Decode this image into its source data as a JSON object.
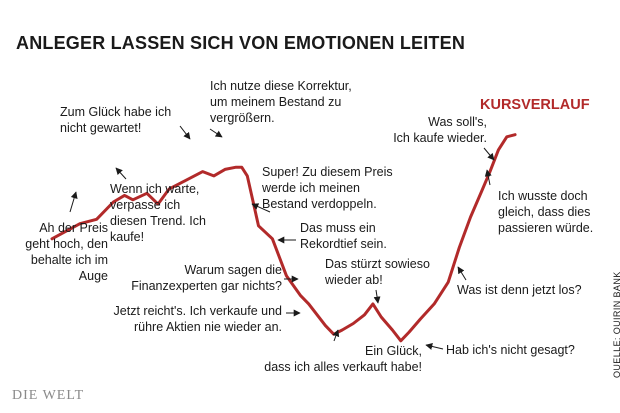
{
  "title": "ANLEGER LASSEN SICH VON EMOTIONEN LEITEN",
  "logo": "DIE WELT",
  "source": "QUELLE: QUIRIN BANK",
  "colors": {
    "line": "#b22a2a",
    "text": "#1a1a1a",
    "logo": "#8a8a8a"
  },
  "chart_data": {
    "type": "line",
    "title": "ANLEGER LASSEN SICH VON EMOTIONEN LEITEN",
    "xlabel": "",
    "ylabel": "",
    "grid": false,
    "legend": "none",
    "series": [
      {
        "name": "KURSVERLAUF",
        "color": "#b22a2a",
        "points": [
          [
            0,
            48
          ],
          [
            5,
            55
          ],
          [
            8,
            57
          ],
          [
            11,
            65
          ],
          [
            13,
            68
          ],
          [
            14.5,
            66
          ],
          [
            17,
            69
          ],
          [
            19,
            64
          ],
          [
            21,
            71
          ],
          [
            24,
            75
          ],
          [
            27,
            79
          ],
          [
            29,
            77
          ],
          [
            31,
            80
          ],
          [
            33,
            81
          ],
          [
            34,
            81
          ],
          [
            35,
            77
          ],
          [
            37,
            54
          ],
          [
            39.5,
            48
          ],
          [
            42,
            31
          ],
          [
            44.5,
            22
          ],
          [
            46,
            18
          ],
          [
            47.5,
            13
          ],
          [
            49,
            8
          ],
          [
            50.5,
            4
          ],
          [
            52,
            6
          ],
          [
            54,
            9
          ],
          [
            56,
            13
          ],
          [
            57.5,
            18
          ],
          [
            59,
            12
          ],
          [
            61,
            6
          ],
          [
            62.5,
            1
          ],
          [
            64,
            5
          ],
          [
            66,
            11
          ],
          [
            68.5,
            18
          ],
          [
            71,
            28
          ],
          [
            73,
            44
          ],
          [
            75,
            58
          ],
          [
            77,
            70
          ],
          [
            78.5,
            79
          ],
          [
            80,
            89
          ],
          [
            81.5,
            95
          ],
          [
            83,
            96
          ]
        ]
      }
    ],
    "annotations": [
      {
        "id": "a1",
        "text": "Ah der Preis\ngeht hoch, den\nbehalte ich im\nAuge"
      },
      {
        "id": "a2",
        "text": "Zum Glück habe ich\nnicht gewartet!"
      },
      {
        "id": "a3",
        "text": "Wenn ich warte,\nverpasse ich\ndiesen Trend. Ich\nkaufe!"
      },
      {
        "id": "a4",
        "text": "Ich nutze diese Korrektur,\num meinem Bestand zu\nvergrößern."
      },
      {
        "id": "a5",
        "text": "Super! Zu diesem Preis\nwerde ich meinen\nBestand verdoppeln."
      },
      {
        "id": "a6",
        "text": "Das muss ein\nRekordtief sein."
      },
      {
        "id": "a7",
        "text": "Warum sagen die\nFinanzexperten gar nichts?"
      },
      {
        "id": "a8",
        "text": "Das stürzt sowieso\nwieder ab!"
      },
      {
        "id": "a9",
        "text": "Jetzt reicht's. Ich verkaufe und\nrühre Aktien nie wieder an."
      },
      {
        "id": "a10",
        "text": "Ein Glück,\ndass ich alles verkauft habe!"
      },
      {
        "id": "a11",
        "text": "Hab ich's nicht gesagt?"
      },
      {
        "id": "a12",
        "text": "Was ist denn jetzt los?"
      },
      {
        "id": "a13",
        "text": "Ich wusste doch\ngleich, dass dies\npassieren würde."
      },
      {
        "id": "a14",
        "text": "Was soll's,\nIch kaufe wieder."
      }
    ]
  }
}
